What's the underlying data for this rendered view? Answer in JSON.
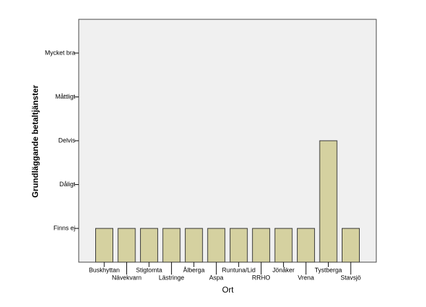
{
  "chart_data": {
    "type": "bar",
    "x_label": "Ort",
    "y_label": "Grundläggande betaltjänster",
    "categories": [
      "Buskhyttan",
      "Nävekvarn",
      "Stigtomta",
      "Lästringe",
      "Ålberga",
      "Aspa",
      "Runtuna/Lid",
      "RRHO",
      "Jönåker",
      "Vrena",
      "Tystberga",
      "Stavsjö"
    ],
    "values": [
      1,
      1,
      1,
      1,
      1,
      1,
      1,
      1,
      1,
      1,
      3,
      1
    ],
    "color": "#d5d1a0",
    "ylim": [
      0.23,
      5.77
    ],
    "yticks": [
      {
        "value": 1,
        "label": "Finns ej"
      },
      {
        "value": 2,
        "label": "Dåligt"
      },
      {
        "value": 3,
        "label": "Delvis"
      },
      {
        "value": 4,
        "label": "Måttligt"
      },
      {
        "value": 5,
        "label": "Mycket bra"
      }
    ],
    "grid": false
  }
}
